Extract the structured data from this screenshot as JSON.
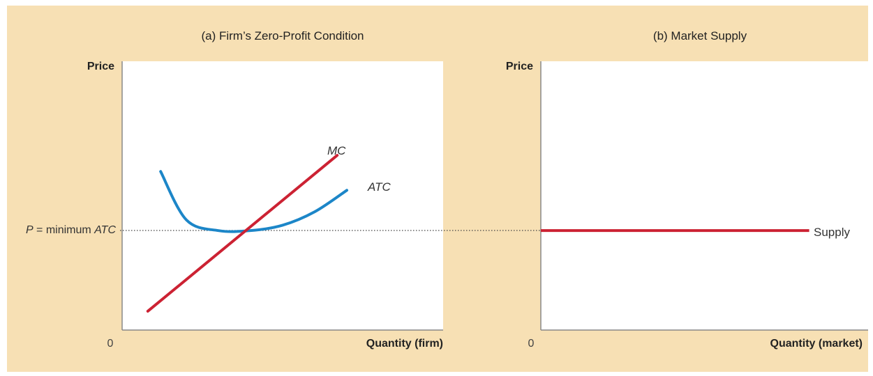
{
  "colors": {
    "background": "#f7e0b4",
    "mc": "#cc2233",
    "atc": "#1c86c8",
    "supply": "#cc2233"
  },
  "panel_a": {
    "title": "(a) Firm’s Zero-Profit Condition",
    "ylabel": "Price",
    "xlabel": "Quantity (firm)",
    "origin": "0",
    "mc_label": "MC",
    "atc_label": "ATC",
    "price_label_prefix": "P",
    "price_label_eq": " = minimum ",
    "price_label_suffix": "ATC"
  },
  "panel_b": {
    "title": "(b) Market Supply",
    "ylabel": "Price",
    "xlabel": "Quantity (market)",
    "origin": "0",
    "supply_label": "Supply"
  },
  "chart_data": [
    {
      "type": "line",
      "title": "(a) Firm’s Zero-Profit Condition",
      "xlabel": "Quantity (firm)",
      "ylabel": "Price",
      "xlim": [
        0,
        10
      ],
      "ylim": [
        0,
        10
      ],
      "series": [
        {
          "name": "MC",
          "x": [
            0.8,
            6.7
          ],
          "y": [
            0.7,
            6.5
          ]
        },
        {
          "name": "ATC",
          "x": [
            1.2,
            2.0,
            3.0,
            4.0,
            5.0,
            6.0,
            7.0
          ],
          "y": [
            5.9,
            4.1,
            3.7,
            3.7,
            3.9,
            4.4,
            5.2
          ]
        }
      ],
      "reference_line": {
        "label": "P = minimum ATC",
        "y": 3.7,
        "style": "dotted"
      }
    },
    {
      "type": "line",
      "title": "(b) Market Supply",
      "xlabel": "Quantity (market)",
      "ylabel": "Price",
      "xlim": [
        0,
        10
      ],
      "ylim": [
        0,
        10
      ],
      "series": [
        {
          "name": "Supply",
          "x": [
            0,
            8.2
          ],
          "y": [
            3.7,
            3.7
          ]
        }
      ]
    }
  ]
}
